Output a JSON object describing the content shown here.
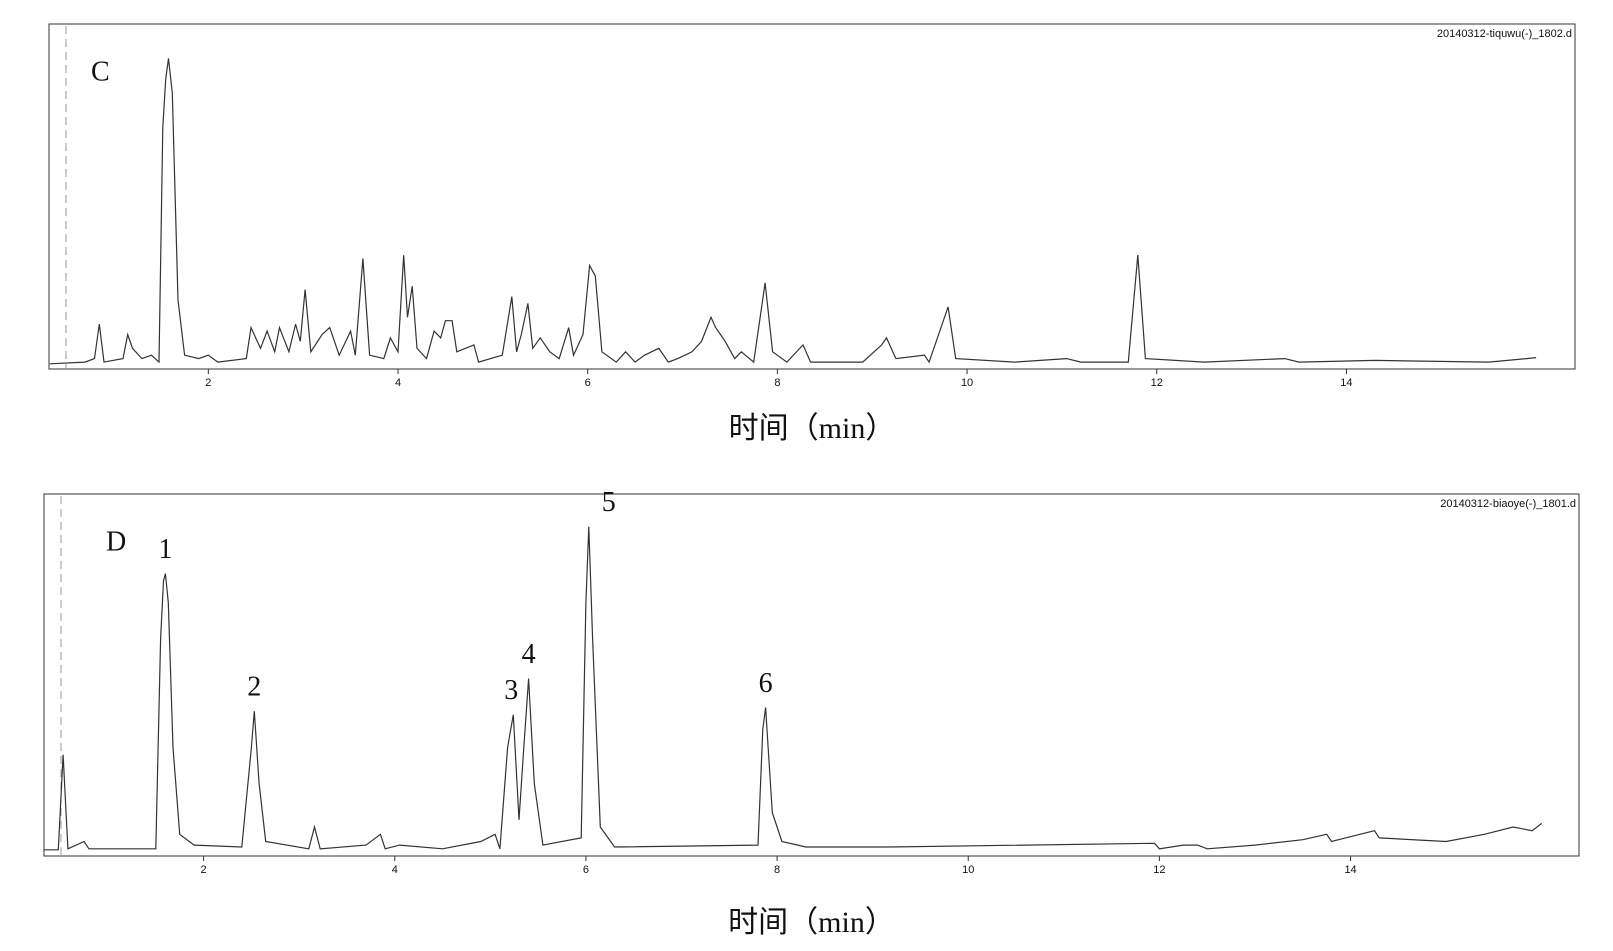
{
  "chart_data": [
    {
      "type": "line",
      "panel_label": "C",
      "file_name": "20140312-tiquwu(-)_1802.d",
      "xlabel": "时间（min）",
      "color": "#333333",
      "xlim": [
        0.32,
        16.41
      ],
      "ylim": [
        0,
        100
      ],
      "xticks": [
        2,
        4,
        6,
        8,
        10,
        12,
        14
      ],
      "x": [
        0.33,
        0.7,
        0.8,
        0.85,
        0.9,
        1.1,
        1.15,
        1.2,
        1.3,
        1.4,
        1.48,
        1.52,
        1.55,
        1.58,
        1.62,
        1.68,
        1.75,
        1.9,
        2.0,
        2.1,
        2.4,
        2.45,
        2.55,
        2.62,
        2.7,
        2.75,
        2.85,
        2.92,
        2.97,
        3.02,
        3.08,
        3.2,
        3.28,
        3.38,
        3.5,
        3.55,
        3.63,
        3.7,
        3.85,
        3.92,
        4.0,
        4.06,
        4.1,
        4.15,
        4.2,
        4.3,
        4.38,
        4.45,
        4.5,
        4.57,
        4.62,
        4.8,
        4.85,
        5.1,
        5.2,
        5.25,
        5.3,
        5.37,
        5.42,
        5.5,
        5.6,
        5.7,
        5.8,
        5.85,
        5.95,
        6.02,
        6.08,
        6.15,
        6.3,
        6.4,
        6.5,
        6.6,
        6.75,
        6.85,
        6.95,
        7.1,
        7.2,
        7.3,
        7.35,
        7.45,
        7.55,
        7.62,
        7.75,
        7.87,
        7.95,
        8.1,
        8.27,
        8.35,
        8.9,
        9.1,
        9.15,
        9.25,
        9.55,
        9.6,
        9.8,
        9.88,
        10.5,
        11.05,
        11.2,
        11.7,
        11.8,
        11.88,
        12.5,
        13.35,
        13.5,
        14.3,
        15.5,
        15.9,
        16.0
      ],
      "values": [
        1.5,
        2,
        3,
        13,
        2,
        3,
        10,
        6,
        3,
        4,
        2,
        70,
        84,
        90,
        80,
        20,
        4,
        3,
        4,
        2,
        3,
        12,
        6,
        11,
        5,
        12,
        5,
        13,
        8,
        23,
        5,
        10,
        12,
        4,
        11,
        4,
        32,
        4,
        3,
        9,
        5,
        33,
        15,
        24,
        6,
        3,
        11,
        9,
        14,
        14,
        5,
        7,
        2,
        4,
        21,
        5,
        10,
        19,
        6,
        9,
        5,
        3,
        12,
        4,
        10,
        30,
        27,
        5,
        2,
        5,
        2,
        4,
        6,
        2,
        3,
        5,
        8,
        15,
        12,
        8,
        3,
        5,
        2,
        25,
        5,
        2,
        7,
        2,
        2,
        7,
        9,
        3,
        4,
        2,
        18,
        3,
        2,
        3,
        2,
        2,
        33,
        3,
        2,
        3,
        2,
        2.5,
        2,
        3,
        3.3
      ]
    },
    {
      "type": "line",
      "panel_label": "D",
      "file_name": "20140312-biaoye(-)_1801.d",
      "xlabel": "时间（min）",
      "color": "#333333",
      "xlim": [
        0.33,
        16.39
      ],
      "ylim": [
        0,
        100
      ],
      "xticks": [
        2,
        4,
        6,
        8,
        10,
        12,
        14
      ],
      "x": [
        0.33,
        0.48,
        0.53,
        0.58,
        0.75,
        0.8,
        1.5,
        1.55,
        1.58,
        1.6,
        1.63,
        1.68,
        1.75,
        1.9,
        2.4,
        2.5,
        2.53,
        2.58,
        2.65,
        3.1,
        3.16,
        3.22,
        3.7,
        3.85,
        3.9,
        4.05,
        4.5,
        4.9,
        5.05,
        5.1,
        5.18,
        5.24,
        5.3,
        5.35,
        5.4,
        5.46,
        5.55,
        5.95,
        6.0,
        6.03,
        6.07,
        6.15,
        6.3,
        7.8,
        7.85,
        7.88,
        7.95,
        8.05,
        8.3,
        9.15,
        11.95,
        12.0,
        12.25,
        12.4,
        12.5,
        13.0,
        13.5,
        13.75,
        13.8,
        14.25,
        14.3,
        15.0,
        15.4,
        15.7,
        15.9,
        16.0
      ],
      "values": [
        1.7,
        1.7,
        28,
        2,
        4,
        2,
        2,
        60,
        76,
        78,
        70,
        30,
        6,
        3,
        2.5,
        30,
        40,
        20,
        4,
        2,
        8,
        2,
        3,
        6,
        2,
        3,
        2,
        4,
        6,
        2,
        30,
        39,
        10,
        30,
        49,
        20,
        3,
        5,
        70,
        91,
        60,
        8,
        2.5,
        3,
        35,
        41,
        12,
        4,
        2.5,
        2.5,
        3.5,
        2,
        3,
        3,
        2,
        3,
        4.5,
        6,
        4,
        7,
        5,
        4,
        6,
        8,
        7,
        9
      ],
      "peak_labels": [
        {
          "label": "1",
          "x": 1.6
        },
        {
          "label": "2",
          "x": 2.53
        },
        {
          "label": "3",
          "x": 5.24
        },
        {
          "label": "4",
          "x": 5.4
        },
        {
          "label": "5",
          "x": 6.03
        },
        {
          "label": "6",
          "x": 7.88
        }
      ]
    }
  ]
}
